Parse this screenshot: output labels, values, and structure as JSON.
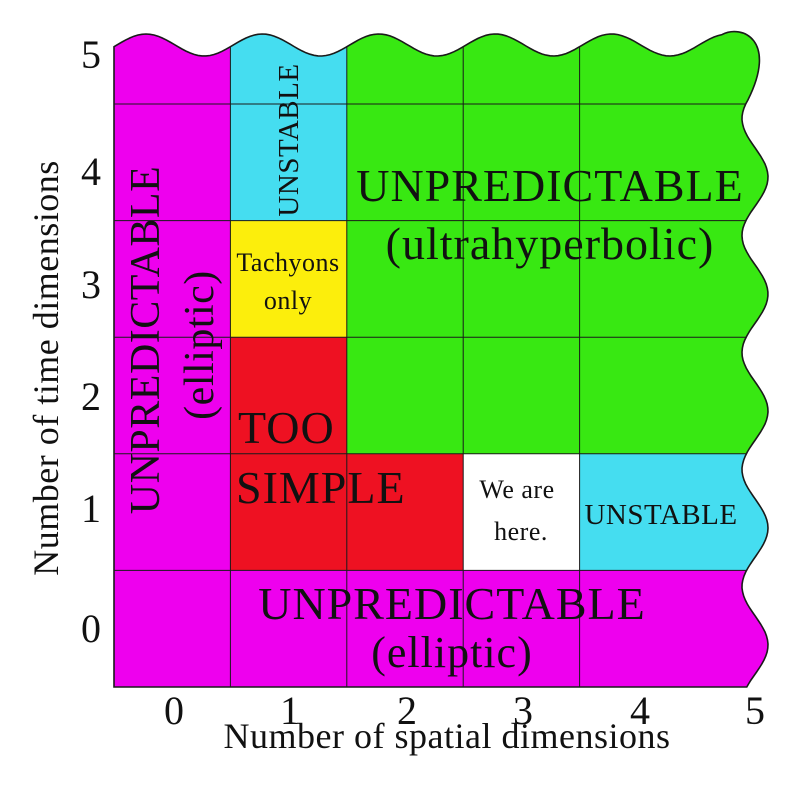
{
  "chart": {
    "x_label": "Number of spatial dimensions",
    "y_label": "Number of time dimensions",
    "x_ticks": [
      "0",
      "1",
      "2",
      "3",
      "4",
      "5"
    ],
    "y_ticks": [
      "0",
      "1",
      "2",
      "3",
      "4",
      "5"
    ],
    "colors": {
      "magenta": "#ee00ee",
      "cyan": "#45ddf0",
      "green": "#38e812",
      "yellow": "#fcee0c",
      "red": "#ee1122",
      "white": "#ffffff",
      "line": "#1a1a1a"
    },
    "regions": {
      "left_column": {
        "line1": "UNPREDICTABLE",
        "line2": "(elliptic)"
      },
      "bottom_row": {
        "line1": "UNPREDICTABLE",
        "line2": "(elliptic)"
      },
      "green": {
        "line1": "UNPREDICTABLE",
        "line2": "(ultrahyperbolic)"
      },
      "top_cyan": {
        "label": "UNSTABLE"
      },
      "right_cyan": {
        "label": "UNSTABLE"
      },
      "yellow": {
        "line1": "Tachyons",
        "line2": "only"
      },
      "red": {
        "line1": "TOO",
        "line2": "SIMPLE"
      },
      "white": {
        "line1": "We are",
        "line2": "here."
      }
    }
  },
  "chart_data": {
    "type": "heatmap",
    "title": "",
    "xlabel": "Number of spatial dimensions",
    "ylabel": "Number of time dimensions",
    "x": [
      0,
      1,
      2,
      3,
      4,
      5
    ],
    "y": [
      0,
      1,
      2,
      3,
      4,
      5
    ],
    "xlim": [
      -0.5,
      "5+ (wavy edge, continues beyond 5)"
    ],
    "ylim": [
      -0.5,
      "5+ (wavy edge, continues beyond 5)"
    ],
    "grid": true,
    "regions": [
      {
        "label": "UNPREDICTABLE (elliptic)",
        "color_key": "magenta",
        "cells": "entire column x=0 (y=0..5+) and entire row y=0 (x=0..5+)"
      },
      {
        "label": "UNSTABLE",
        "color_key": "cyan",
        "cells": [
          [
            1,
            4
          ],
          [
            1,
            5
          ],
          [
            4,
            1
          ],
          [
            5,
            1
          ]
        ],
        "note": "extends beyond 5 at wavy edges"
      },
      {
        "label": "Tachyons only",
        "color_key": "yellow",
        "cells": [
          [
            1,
            3
          ]
        ]
      },
      {
        "label": "TOO SIMPLE",
        "color_key": "red",
        "cells": [
          [
            1,
            1
          ],
          [
            1,
            2
          ],
          [
            2,
            1
          ]
        ]
      },
      {
        "label": "We are here.",
        "color_key": "white",
        "cells": [
          [
            3,
            1
          ]
        ]
      },
      {
        "label": "UNPREDICTABLE (ultrahyperbolic)",
        "color_key": "green",
        "cells": [
          [
            2,
            2
          ],
          [
            2,
            3
          ],
          [
            2,
            4
          ],
          [
            2,
            5
          ],
          [
            3,
            2
          ],
          [
            3,
            3
          ],
          [
            3,
            4
          ],
          [
            3,
            5
          ],
          [
            4,
            2
          ],
          [
            4,
            3
          ],
          [
            4,
            4
          ],
          [
            4,
            5
          ],
          [
            5,
            2
          ],
          [
            5,
            3
          ],
          [
            5,
            4
          ],
          [
            5,
            5
          ]
        ],
        "note": "extends beyond 5 at wavy top/right edges"
      }
    ],
    "legend": "none",
    "edge_style": "top and right plot edges drawn wavy to indicate continuation to infinity"
  }
}
